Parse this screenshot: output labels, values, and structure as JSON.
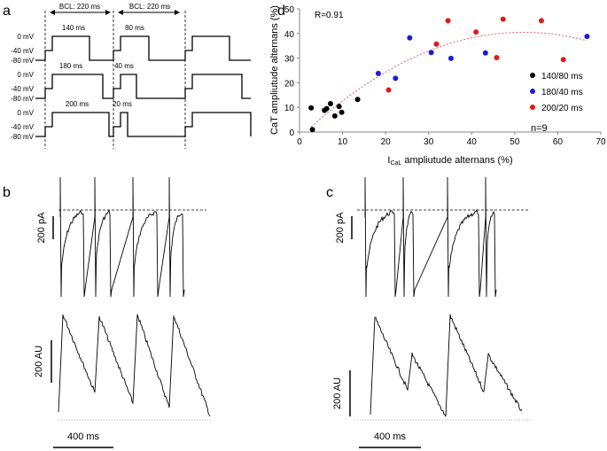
{
  "panels": {
    "a": {
      "label": "a",
      "bcl_labels": [
        "BCL: 220 ms",
        "BCL: 220 ms"
      ],
      "voltage_labels": [
        "0 mV",
        "-40 mV",
        "-80 mV"
      ],
      "rows": [
        {
          "durations": [
            "140 ms",
            "80 ms"
          ]
        },
        {
          "durations": [
            "180 ms",
            "40 ms"
          ]
        },
        {
          "durations": [
            "200 ms",
            "20 ms"
          ]
        }
      ]
    },
    "b": {
      "label": "b",
      "current_scale": "200 pA",
      "fluor_scale": "200 AU",
      "time_scale": "400 ms"
    },
    "c": {
      "label": "c",
      "current_scale": "200 pA",
      "fluor_scale": "200 AU",
      "time_scale": "400 ms"
    },
    "d": {
      "label": "d"
    }
  },
  "chart_data": {
    "type": "scatter",
    "title": "",
    "xlabel_main": "I",
    "xlabel_sub": "CaL",
    "xlabel_rest": " ampliutude alternans (%)",
    "ylabel": "CaT ampliutude alternans (%)",
    "xlim": [
      0,
      70
    ],
    "ylim": [
      0,
      50
    ],
    "xticks": [
      0,
      10,
      20,
      30,
      40,
      50,
      60,
      70
    ],
    "yticks": [
      0,
      10,
      20,
      30,
      40,
      50
    ],
    "grid": false,
    "legend_placement": "right",
    "annotation_r": "R=0.91",
    "annotation_n": "n=9",
    "trendline": {
      "type": "polynomial-2",
      "style": "dashed",
      "color": "#e05060"
    },
    "series": [
      {
        "name": "140/80 ms",
        "color": "#000000",
        "points": [
          [
            2.7,
            9.8
          ],
          [
            3,
            1
          ],
          [
            5.8,
            8.8
          ],
          [
            6.3,
            9.5
          ],
          [
            7.2,
            11.5
          ],
          [
            8.2,
            6.5
          ],
          [
            9.2,
            10.4
          ],
          [
            9.8,
            8
          ],
          [
            13.5,
            13.2
          ]
        ]
      },
      {
        "name": "180/40 ms",
        "color": "#1a1adc",
        "points": [
          [
            18.3,
            23.8
          ],
          [
            22.3,
            21.8
          ],
          [
            25.6,
            38.2
          ],
          [
            30.6,
            32.3
          ],
          [
            35.2,
            29.9
          ],
          [
            43.2,
            32.1
          ],
          [
            66.8,
            38.8
          ]
        ]
      },
      {
        "name": "200/20 ms",
        "color": "#e01818",
        "points": [
          [
            20.7,
            17.1
          ],
          [
            31.8,
            35.7
          ],
          [
            34.5,
            45.2
          ],
          [
            41,
            40.6
          ],
          [
            45.8,
            30.2
          ],
          [
            47.3,
            45.8
          ],
          [
            56.2,
            45.2
          ],
          [
            61.3,
            29.4
          ]
        ]
      }
    ]
  }
}
